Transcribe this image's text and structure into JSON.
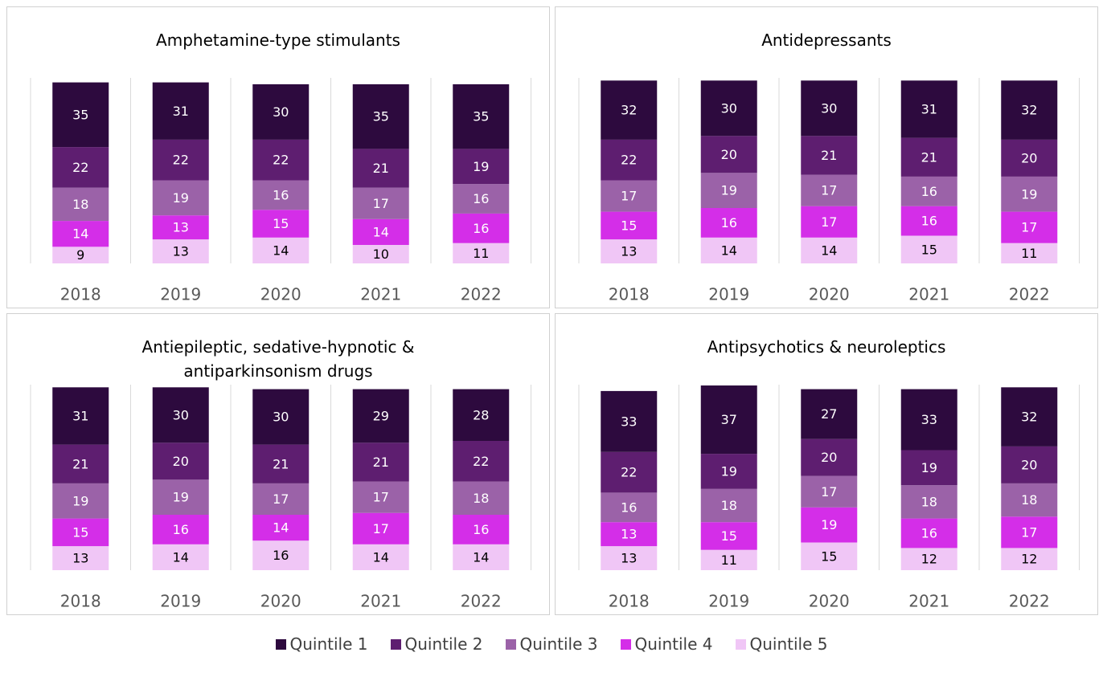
{
  "chart_data": [
    {
      "type": "stacked_bar",
      "title": "Amphetamine-type stimulants",
      "categories": [
        "2018",
        "2019",
        "2020",
        "2021",
        "2022"
      ],
      "series": [
        {
          "name": "Quintile 1",
          "color": "#2d0a3e",
          "values": [
            35,
            31,
            30,
            35,
            35
          ]
        },
        {
          "name": "Quintile 2",
          "color": "#5e1e70",
          "values": [
            22,
            22,
            22,
            21,
            19
          ]
        },
        {
          "name": "Quintile 3",
          "color": "#9b62a8",
          "values": [
            18,
            19,
            16,
            17,
            16
          ]
        },
        {
          "name": "Quintile 4",
          "color": "#d42ee8",
          "values": [
            14,
            13,
            15,
            14,
            16
          ]
        },
        {
          "name": "Quintile 5",
          "color": "#f0c6f6",
          "values": [
            9,
            13,
            14,
            10,
            11
          ]
        }
      ]
    },
    {
      "type": "stacked_bar",
      "title": "Antidepressants",
      "categories": [
        "2018",
        "2019",
        "2020",
        "2021",
        "2022"
      ],
      "series": [
        {
          "name": "Quintile 1",
          "color": "#2d0a3e",
          "values": [
            32,
            30,
            30,
            31,
            32
          ]
        },
        {
          "name": "Quintile 2",
          "color": "#5e1e70",
          "values": [
            22,
            20,
            21,
            21,
            20
          ]
        },
        {
          "name": "Quintile 3",
          "color": "#9b62a8",
          "values": [
            17,
            19,
            17,
            16,
            19
          ]
        },
        {
          "name": "Quintile 4",
          "color": "#d42ee8",
          "values": [
            15,
            16,
            17,
            16,
            17
          ]
        },
        {
          "name": "Quintile 5",
          "color": "#f0c6f6",
          "values": [
            13,
            14,
            14,
            15,
            11
          ]
        }
      ]
    },
    {
      "type": "stacked_bar",
      "title": "Antiepileptic, sedative-hypnotic & antiparkinsonism drugs",
      "categories": [
        "2018",
        "2019",
        "2020",
        "2021",
        "2022"
      ],
      "series": [
        {
          "name": "Quintile 1",
          "color": "#2d0a3e",
          "values": [
            31,
            30,
            30,
            29,
            28
          ]
        },
        {
          "name": "Quintile 2",
          "color": "#5e1e70",
          "values": [
            21,
            20,
            21,
            21,
            22
          ]
        },
        {
          "name": "Quintile 3",
          "color": "#9b62a8",
          "values": [
            19,
            19,
            17,
            17,
            18
          ]
        },
        {
          "name": "Quintile 4",
          "color": "#d42ee8",
          "values": [
            15,
            16,
            14,
            17,
            16
          ]
        },
        {
          "name": "Quintile 5",
          "color": "#f0c6f6",
          "values": [
            13,
            14,
            16,
            14,
            14
          ]
        }
      ]
    },
    {
      "type": "stacked_bar",
      "title": "Antipsychotics & neuroleptics",
      "categories": [
        "2018",
        "2019",
        "2020",
        "2021",
        "2022"
      ],
      "series": [
        {
          "name": "Quintile 1",
          "color": "#2d0a3e",
          "values": [
            33,
            37,
            27,
            33,
            32
          ]
        },
        {
          "name": "Quintile 2",
          "color": "#5e1e70",
          "values": [
            22,
            19,
            20,
            19,
            20
          ]
        },
        {
          "name": "Quintile 3",
          "color": "#9b62a8",
          "values": [
            16,
            18,
            17,
            18,
            18
          ]
        },
        {
          "name": "Quintile 4",
          "color": "#d42ee8",
          "values": [
            13,
            15,
            19,
            16,
            17
          ]
        },
        {
          "name": "Quintile 5",
          "color": "#f0c6f6",
          "values": [
            13,
            11,
            15,
            12,
            12
          ]
        }
      ]
    }
  ]
}
